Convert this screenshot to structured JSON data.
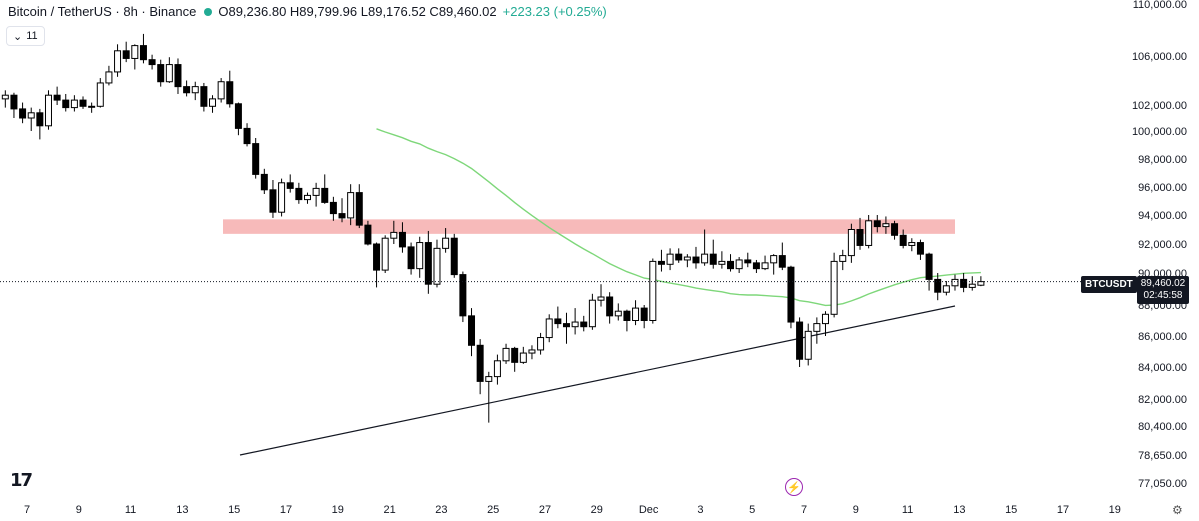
{
  "legend": {
    "symbol": "Bitcoin / TetherUS · 8h · Binance",
    "ohlc": "O89,236.80 H89,799.96 L89,176.52 C89,460.02",
    "change": "+223.23 (+0.25%)"
  },
  "ma_tag": "11",
  "price_label": {
    "symbol": "BTCUSDT",
    "price": "89,460.02",
    "countdown": "02:45:58"
  },
  "colors": {
    "up": "#ffffff",
    "down": "#000000",
    "ma": "#7ed77a",
    "zone": "#f4a3a3",
    "trendline": "#131722",
    "accent": "#22ab94"
  },
  "icons": {
    "logo": "tradingview-logo-icon",
    "flash": "lightning-icon",
    "settings": "gear-icon"
  },
  "chart_data": {
    "type": "candlestick",
    "y_axis_ticks": [
      "110,000.00",
      "106,000.00",
      "102,000.00",
      "100,000.00",
      "98,000.00",
      "96,000.00",
      "94,000.00",
      "92,000.00",
      "90,000.00",
      "88,000.00",
      "86,000.00",
      "84,000.00",
      "82,000.00",
      "80,400.00",
      "78,650.00",
      "77,050.00"
    ],
    "x_axis_ticks": [
      "7",
      "9",
      "11",
      "13",
      "15",
      "17",
      "19",
      "21",
      "23",
      "25",
      "27",
      "29",
      "Dec",
      "3",
      "5",
      "7",
      "9",
      "11",
      "13",
      "15",
      "17",
      "19"
    ],
    "timeframe": "8h",
    "resistance_zone": {
      "from": 92700,
      "to": 93700
    },
    "candles_ohlc": [
      [
        102500,
        103200,
        101800,
        102800
      ],
      [
        102800,
        103000,
        101000,
        101700
      ],
      [
        101700,
        102200,
        100600,
        101000
      ],
      [
        101000,
        101800,
        100000,
        101400
      ],
      [
        101400,
        101700,
        99400,
        100400
      ],
      [
        100400,
        103200,
        100100,
        102800
      ],
      [
        102800,
        103500,
        102000,
        102400
      ],
      [
        102400,
        102900,
        101500,
        101800
      ],
      [
        101800,
        102800,
        101500,
        102400
      ],
      [
        102400,
        102700,
        101700,
        101900
      ],
      [
        101900,
        102200,
        101400,
        101900
      ],
      [
        101900,
        104200,
        101800,
        103800
      ],
      [
        103800,
        105200,
        103600,
        104700
      ],
      [
        104700,
        106900,
        104300,
        106400
      ],
      [
        106400,
        107100,
        105500,
        105800
      ],
      [
        105800,
        106900,
        104900,
        106800
      ],
      [
        106800,
        107700,
        105400,
        105700
      ],
      [
        105700,
        106100,
        104900,
        105300
      ],
      [
        105300,
        105700,
        103500,
        103900
      ],
      [
        103900,
        105900,
        103800,
        105300
      ],
      [
        105300,
        105800,
        102900,
        103500
      ],
      [
        103500,
        104000,
        102700,
        103000
      ],
      [
        103000,
        103900,
        102400,
        103500
      ],
      [
        103500,
        103800,
        101500,
        101900
      ],
      [
        101900,
        102800,
        101400,
        102500
      ],
      [
        102500,
        104200,
        102200,
        103900
      ],
      [
        103900,
        104800,
        101800,
        102100
      ],
      [
        102100,
        102200,
        99700,
        100200
      ],
      [
        100200,
        100600,
        98900,
        99100
      ],
      [
        99100,
        99500,
        96600,
        96900
      ],
      [
        96900,
        97300,
        95500,
        95800
      ],
      [
        95800,
        96500,
        93800,
        94200
      ],
      [
        94200,
        96600,
        93900,
        96300
      ],
      [
        96300,
        96900,
        95600,
        95900
      ],
      [
        95900,
        96300,
        94800,
        95100
      ],
      [
        95100,
        95600,
        94800,
        95400
      ],
      [
        95400,
        96300,
        94600,
        95900
      ],
      [
        95900,
        96900,
        94800,
        94900
      ],
      [
        94900,
        95300,
        93600,
        94100
      ],
      [
        94100,
        95200,
        93500,
        93800
      ],
      [
        93800,
        96200,
        93300,
        95600
      ],
      [
        95600,
        96200,
        93100,
        93300
      ],
      [
        93300,
        93600,
        91900,
        92000
      ],
      [
        92000,
        92100,
        89100,
        90200
      ],
      [
        90200,
        92600,
        90000,
        92400
      ],
      [
        92400,
        93600,
        92000,
        92800
      ],
      [
        92800,
        93500,
        91400,
        91800
      ],
      [
        91800,
        92100,
        89900,
        90300
      ],
      [
        90300,
        92500,
        89700,
        92100
      ],
      [
        92100,
        92900,
        88700,
        89300
      ],
      [
        89300,
        92300,
        89100,
        91700
      ],
      [
        91700,
        93100,
        91400,
        92400
      ],
      [
        92400,
        92700,
        89700,
        89900
      ],
      [
        89900,
        90100,
        86900,
        87300
      ],
      [
        87300,
        87800,
        84700,
        85400
      ],
      [
        85400,
        85800,
        82300,
        83100
      ],
      [
        83100,
        83700,
        80600,
        83400
      ],
      [
        83400,
        84800,
        82900,
        84400
      ],
      [
        84400,
        85500,
        84200,
        85200
      ],
      [
        85200,
        85300,
        83700,
        84300
      ],
      [
        84300,
        85300,
        84200,
        84900
      ],
      [
        84900,
        85400,
        84500,
        85100
      ],
      [
        85100,
        86200,
        84800,
        85900
      ],
      [
        85900,
        87400,
        85600,
        87100
      ],
      [
        87100,
        87900,
        86500,
        86800
      ],
      [
        86800,
        87500,
        85500,
        86600
      ],
      [
        86600,
        87800,
        86100,
        86900
      ],
      [
        86900,
        87300,
        86300,
        86600
      ],
      [
        86600,
        88700,
        86400,
        88300
      ],
      [
        88300,
        89300,
        87900,
        88500
      ],
      [
        88500,
        88800,
        86800,
        87300
      ],
      [
        87300,
        88100,
        87000,
        87600
      ],
      [
        87600,
        87700,
        86300,
        87000
      ],
      [
        87000,
        88300,
        86700,
        87800
      ],
      [
        87800,
        88000,
        86500,
        87000
      ],
      [
        87000,
        91000,
        86800,
        90800
      ],
      [
        90800,
        91600,
        90100,
        90600
      ],
      [
        90600,
        91700,
        90200,
        91300
      ],
      [
        91300,
        91700,
        90700,
        90900
      ],
      [
        90900,
        91300,
        90400,
        91100
      ],
      [
        91100,
        91800,
        90300,
        90700
      ],
      [
        90700,
        93000,
        90500,
        91300
      ],
      [
        91300,
        92300,
        90300,
        90600
      ],
      [
        90600,
        91500,
        90300,
        90800
      ],
      [
        90800,
        91300,
        90100,
        90300
      ],
      [
        90300,
        91100,
        90000,
        90900
      ],
      [
        90900,
        91400,
        90400,
        90700
      ],
      [
        90700,
        90900,
        90000,
        90300
      ],
      [
        90300,
        91200,
        90200,
        90700
      ],
      [
        90700,
        91300,
        89900,
        91200
      ],
      [
        91200,
        92100,
        90200,
        90400
      ],
      [
        90400,
        90500,
        86500,
        86900
      ],
      [
        86900,
        87200,
        84000,
        84500
      ],
      [
        84500,
        86800,
        84100,
        86300
      ],
      [
        86300,
        87200,
        85500,
        86800
      ],
      [
        86800,
        87600,
        86000,
        87400
      ],
      [
        87400,
        91400,
        87200,
        90800
      ],
      [
        90800,
        91600,
        90200,
        91200
      ],
      [
        91200,
        93400,
        90700,
        93000
      ],
      [
        93000,
        93800,
        91600,
        91900
      ],
      [
        91900,
        94000,
        91700,
        93600
      ],
      [
        93600,
        94000,
        92800,
        93200
      ],
      [
        93200,
        93900,
        92700,
        93400
      ],
      [
        93400,
        93600,
        92300,
        92600
      ],
      [
        92600,
        93000,
        91700,
        91900
      ],
      [
        91900,
        92400,
        91500,
        92100
      ],
      [
        92100,
        92300,
        90900,
        91300
      ],
      [
        91300,
        91400,
        88900,
        89600
      ],
      [
        89600,
        90000,
        88300,
        88800
      ],
      [
        88800,
        89500,
        88600,
        89200
      ],
      [
        89200,
        89900,
        88900,
        89600
      ],
      [
        89600,
        90000,
        88800,
        89100
      ],
      [
        89100,
        89800,
        88900,
        89300
      ],
      [
        89236.8,
        89799.96,
        89176.52,
        89460.02
      ]
    ],
    "moving_average": {
      "period": 11
    },
    "current_price": 89460.02
  }
}
